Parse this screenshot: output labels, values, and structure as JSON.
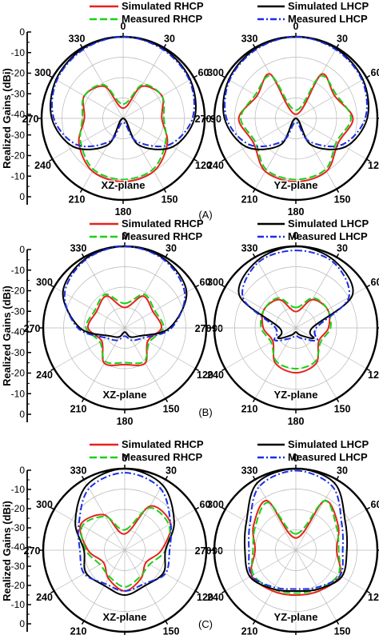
{
  "legend_labels": [
    "Simulated RHCP",
    "Measured RHCP",
    "Simulated LHCP",
    "Measured  LHCP"
  ],
  "series_colors": {
    "Simulated RHCP": "#e8221c",
    "Measured RHCP": "#19d119",
    "Simulated LHCP": "#000000",
    "Measured  LHCP": "#1a2ee6"
  },
  "ylabel": "Realized Gains (dBi)",
  "angle_labels": [
    "0",
    "30",
    "60",
    "90",
    "120",
    "150",
    "180",
    "210",
    "240",
    "270",
    "300",
    "330"
  ],
  "panels": [
    {
      "caption": "(A)",
      "left_plane": "XZ-plane",
      "right_plane": "YZ-plane",
      "ticks": [
        "0",
        "-10",
        "-20",
        "-30",
        "-40",
        "-30",
        "-20",
        "-10",
        "0"
      ]
    },
    {
      "caption": "(B)",
      "left_plane": "XZ-plane",
      "right_plane": "YZ-plane",
      "ticks": [
        "0",
        "-10",
        "-20",
        "-30",
        "-40",
        "-30",
        "-20",
        "-10",
        "0"
      ]
    },
    {
      "caption": "(C)",
      "left_plane": "XZ-plane",
      "right_plane": "YZ-plane",
      "ticks": [
        "0",
        "-10",
        "-20",
        "-30",
        "-40",
        "-30",
        "-20",
        "-10",
        "0"
      ]
    }
  ],
  "chart_data": [
    {
      "type": "polar",
      "panel": "A",
      "plane": "XZ-plane",
      "r_range_dBi": [
        -40,
        0
      ],
      "grid": true,
      "theta_deg": [
        0,
        30,
        60,
        90,
        120,
        150,
        180,
        210,
        240,
        270,
        300,
        330
      ],
      "series": [
        {
          "name": "Simulated RHCP",
          "values": [
            -35,
            -22,
            -18,
            -21,
            -15,
            -10,
            -9,
            -10,
            -15,
            -21,
            -18,
            -22
          ]
        },
        {
          "name": "Measured RHCP",
          "values": [
            -33,
            -21,
            -18,
            -20,
            -16,
            -11,
            -10,
            -11,
            -16,
            -20,
            -18,
            -21
          ]
        },
        {
          "name": "Simulated LHCP",
          "values": [
            0,
            -0.5,
            -2,
            -5,
            -12,
            -25,
            -40,
            -25,
            -12,
            -5,
            -2,
            -0.5
          ]
        },
        {
          "name": "Measured  LHCP",
          "values": [
            0,
            -1,
            -2.5,
            -6,
            -14,
            -27,
            -38,
            -27,
            -14,
            -6,
            -2.5,
            -1
          ]
        }
      ]
    },
    {
      "type": "polar",
      "panel": "A",
      "plane": "YZ-plane",
      "r_range_dBi": [
        -40,
        0
      ],
      "grid": true,
      "theta_deg": [
        0,
        30,
        60,
        90,
        120,
        150,
        180,
        210,
        240,
        270,
        300,
        330
      ],
      "series": [
        {
          "name": "Simulated RHCP",
          "values": [
            -38,
            -15,
            -18,
            -12,
            -16,
            -10,
            -9,
            -10,
            -16,
            -12,
            -18,
            -15
          ]
        },
        {
          "name": "Measured RHCP",
          "values": [
            -36,
            -16,
            -17,
            -13,
            -17,
            -11,
            -10,
            -11,
            -17,
            -13,
            -17,
            -16
          ]
        },
        {
          "name": "Simulated LHCP",
          "values": [
            0,
            -0.5,
            -2,
            -5,
            -12,
            -25,
            -40,
            -25,
            -12,
            -5,
            -2,
            -0.5
          ]
        },
        {
          "name": "Measured  LHCP",
          "values": [
            0,
            -1,
            -2.5,
            -6,
            -14,
            -27,
            -38,
            -27,
            -14,
            -6,
            -2.5,
            -1
          ]
        }
      ]
    },
    {
      "type": "polar",
      "panel": "B",
      "plane": "XZ-plane",
      "r_range_dBi": [
        -40,
        0
      ],
      "grid": true,
      "theta_deg": [
        0,
        30,
        60,
        90,
        120,
        150,
        180,
        210,
        240,
        270,
        300,
        330
      ],
      "series": [
        {
          "name": "Simulated RHCP",
          "values": [
            -30,
            -22,
            -24,
            -22,
            -27,
            -20,
            -22,
            -20,
            -27,
            -22,
            -24,
            -22
          ]
        },
        {
          "name": "Measured RHCP",
          "values": [
            -28,
            -21,
            -23,
            -21,
            -26,
            -21,
            -23,
            -21,
            -26,
            -21,
            -23,
            -21
          ]
        },
        {
          "name": "Simulated LHCP",
          "values": [
            0,
            -1,
            -5,
            -18,
            -32,
            -35,
            -38,
            -35,
            -32,
            -18,
            -5,
            -1
          ]
        },
        {
          "name": "Measured  LHCP",
          "values": [
            0,
            -1.5,
            -6,
            -17,
            -30,
            -33,
            -36,
            -33,
            -30,
            -17,
            -6,
            -1.5
          ]
        }
      ]
    },
    {
      "type": "polar",
      "panel": "B",
      "plane": "YZ-plane",
      "r_range_dBi": [
        -40,
        0
      ],
      "grid": true,
      "theta_deg": [
        0,
        30,
        60,
        90,
        120,
        150,
        180,
        210,
        240,
        270,
        300,
        330
      ],
      "series": [
        {
          "name": "Simulated RHCP",
          "values": [
            -32,
            -24,
            -22,
            -24,
            -27,
            -20,
            -18,
            -20,
            -27,
            -24,
            -22,
            -24
          ]
        },
        {
          "name": "Measured RHCP",
          "values": [
            -30,
            -23,
            -22,
            -23,
            -26,
            -21,
            -20,
            -21,
            -26,
            -23,
            -22,
            -23
          ]
        },
        {
          "name": "Simulated LHCP",
          "values": [
            0,
            -2,
            -8,
            -32,
            -30,
            -36,
            -38,
            -36,
            -30,
            -32,
            -8,
            -2
          ]
        },
        {
          "name": "Measured  LHCP",
          "values": [
            -2,
            -3,
            -10,
            -30,
            -28,
            -34,
            -36,
            -34,
            -28,
            -30,
            -10,
            -3
          ]
        }
      ]
    },
    {
      "type": "polar",
      "panel": "C",
      "plane": "XZ-plane",
      "r_range_dBi": [
        -40,
        0
      ],
      "grid": true,
      "theta_deg": [
        0,
        30,
        60,
        90,
        120,
        150,
        180,
        210,
        240,
        270,
        300,
        330
      ],
      "series": [
        {
          "name": "Simulated RHCP",
          "values": [
            -32,
            -15,
            -14,
            -22,
            -28,
            -24,
            -20,
            -24,
            -28,
            -22,
            -15,
            -20
          ]
        },
        {
          "name": "Measured RHCP",
          "values": [
            -30,
            -16,
            -15,
            -20,
            -26,
            -25,
            -22,
            -25,
            -26,
            -21,
            -16,
            -21
          ]
        },
        {
          "name": "Simulated LHCP",
          "values": [
            0,
            -3,
            -12,
            -20,
            -18,
            -20,
            -18,
            -20,
            -18,
            -20,
            -12,
            -3
          ]
        },
        {
          "name": "Measured  LHCP",
          "values": [
            -2,
            -5,
            -14,
            -18,
            -17,
            -21,
            -20,
            -21,
            -17,
            -18,
            -14,
            -5
          ]
        }
      ]
    },
    {
      "type": "polar",
      "panel": "C",
      "plane": "YZ-plane",
      "r_range_dBi": [
        -40,
        0
      ],
      "grid": true,
      "theta_deg": [
        0,
        30,
        60,
        90,
        120,
        150,
        180,
        210,
        240,
        270,
        300,
        330
      ],
      "series": [
        {
          "name": "Simulated RHCP",
          "values": [
            -34,
            -12,
            -16,
            -20,
            -15,
            -17,
            -18,
            -17,
            -15,
            -20,
            -16,
            -12
          ]
        },
        {
          "name": "Measured RHCP",
          "values": [
            -32,
            -12,
            -17,
            -19,
            -16,
            -18,
            -19,
            -18,
            -16,
            -19,
            -17,
            -13
          ]
        },
        {
          "name": "Simulated LHCP",
          "values": [
            0,
            -2,
            -12,
            -15,
            -14,
            -18,
            -20,
            -18,
            -14,
            -15,
            -12,
            -2
          ]
        },
        {
          "name": "Measured  LHCP",
          "values": [
            -1,
            -4,
            -14,
            -17,
            -15,
            -19,
            -21,
            -19,
            -15,
            -17,
            -14,
            -4
          ]
        }
      ]
    }
  ]
}
